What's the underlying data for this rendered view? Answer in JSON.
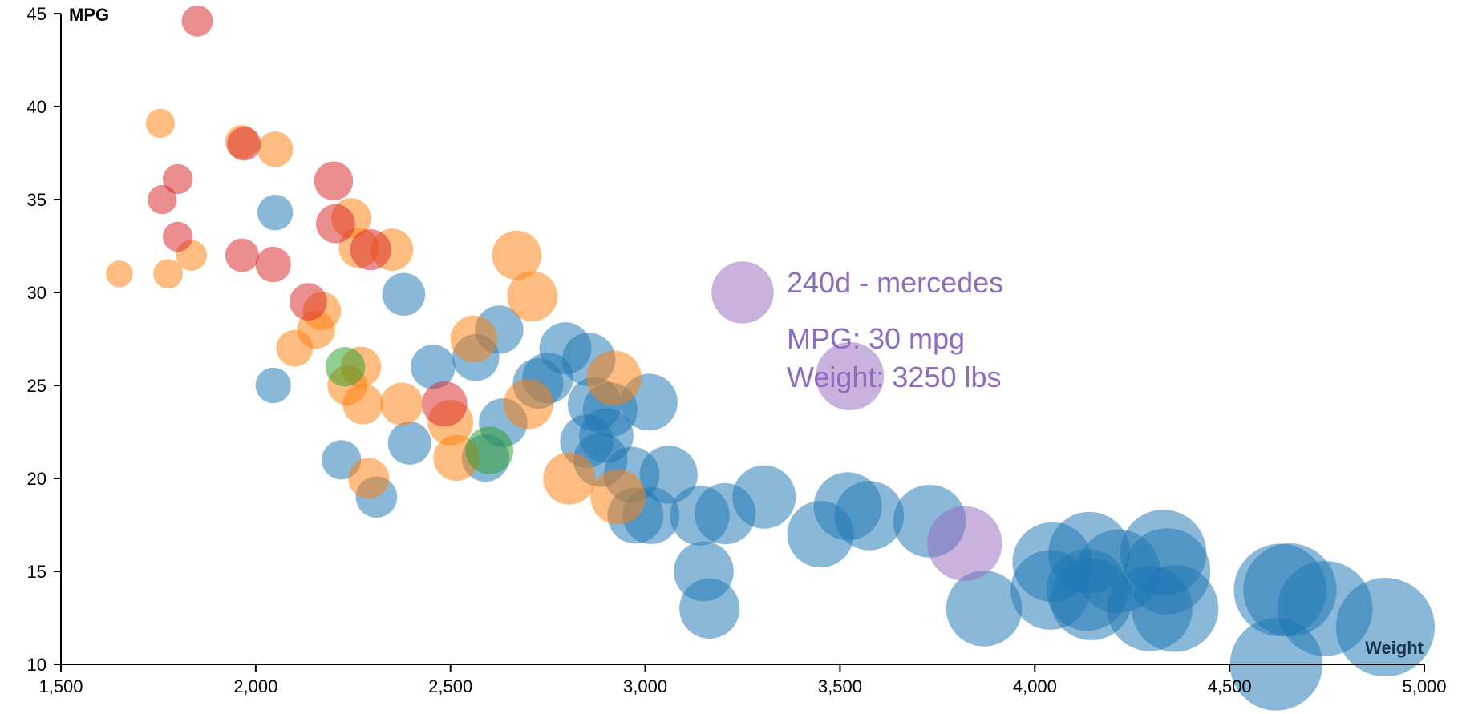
{
  "chart_data": {
    "type": "scatter",
    "xlabel": "Weight",
    "ylabel": "MPG",
    "xlim": [
      1500,
      5000
    ],
    "ylim": [
      10,
      45
    ],
    "x_ticks": [
      "1,500",
      "2,000",
      "2,500",
      "3,000",
      "3,500",
      "4,000",
      "4,500",
      "5,000"
    ],
    "y_ticks": [
      "10",
      "15",
      "20",
      "25",
      "30",
      "35",
      "40",
      "45"
    ],
    "grid": false,
    "colors": {
      "blue": "#1f77b4",
      "orange": "#ff7f0e",
      "red": "#d62728",
      "green": "#2ca02c",
      "purple": "#9467bd",
      "axis": "#000000",
      "weight_label": "#17344f"
    },
    "series": [
      {
        "color": "blue",
        "points": [
          [
            2050,
            34.3
          ],
          [
            2045,
            25
          ],
          [
            2380,
            29.9
          ],
          [
            2220,
            21
          ],
          [
            2310,
            19
          ],
          [
            2395,
            21.9
          ],
          [
            2455,
            26
          ],
          [
            2565,
            26.5
          ],
          [
            2590,
            21.1
          ],
          [
            2625,
            28
          ],
          [
            2635,
            23
          ],
          [
            2725,
            25.1
          ],
          [
            2750,
            25.4
          ],
          [
            2795,
            27
          ],
          [
            2855,
            26.4
          ],
          [
            2850,
            22
          ],
          [
            2870,
            24
          ],
          [
            2885,
            21
          ],
          [
            2900,
            22.3
          ],
          [
            2910,
            23.7
          ],
          [
            2965,
            20.2
          ],
          [
            2975,
            18
          ],
          [
            3010,
            24.1
          ],
          [
            3015,
            18
          ],
          [
            3060,
            20.2
          ],
          [
            3140,
            18
          ],
          [
            3150,
            15
          ],
          [
            3165,
            13
          ],
          [
            3205,
            18.1
          ],
          [
            3305,
            19
          ],
          [
            3450,
            17
          ],
          [
            3520,
            18.5
          ],
          [
            3575,
            18
          ],
          [
            3730,
            17.7
          ],
          [
            3870,
            13
          ],
          [
            4045,
            15.5
          ],
          [
            4040,
            14
          ],
          [
            4140,
            16
          ],
          [
            4135,
            14
          ],
          [
            4145,
            13.5
          ],
          [
            4215,
            15
          ],
          [
            4295,
            13
          ],
          [
            4330,
            16
          ],
          [
            4340,
            15
          ],
          [
            4360,
            13
          ],
          [
            4630,
            14
          ],
          [
            4655,
            14
          ],
          [
            4745,
            13
          ],
          [
            4620,
            10
          ],
          [
            4900,
            12
          ]
        ]
      },
      {
        "color": "orange",
        "points": [
          [
            1755,
            39.1
          ],
          [
            1650,
            31
          ],
          [
            1775,
            31
          ],
          [
            1835,
            32
          ],
          [
            2050,
            37.7
          ],
          [
            1965,
            38.1
          ],
          [
            2100,
            27
          ],
          [
            2155,
            28
          ],
          [
            2170,
            29
          ],
          [
            2235,
            25
          ],
          [
            2245,
            34
          ],
          [
            2265,
            32.4
          ],
          [
            2270,
            26
          ],
          [
            2275,
            24
          ],
          [
            2290,
            20
          ],
          [
            2350,
            32.3
          ],
          [
            2375,
            24
          ],
          [
            2500,
            23
          ],
          [
            2515,
            21.1
          ],
          [
            2560,
            27.5
          ],
          [
            2670,
            32
          ],
          [
            2710,
            29.8
          ],
          [
            2700,
            24
          ],
          [
            2805,
            20
          ],
          [
            2920,
            25.4
          ],
          [
            2930,
            19
          ]
        ]
      },
      {
        "color": "red",
        "points": [
          [
            1850,
            44.6
          ],
          [
            1760,
            35
          ],
          [
            1800,
            36.1
          ],
          [
            1800,
            33
          ],
          [
            1965,
            32
          ],
          [
            1970,
            38
          ],
          [
            2045,
            31.5
          ],
          [
            2135,
            29.5
          ],
          [
            2200,
            36
          ],
          [
            2205,
            33.7
          ],
          [
            2295,
            32.3
          ],
          [
            2485,
            24
          ]
        ]
      },
      {
        "color": "green",
        "points": [
          [
            2230,
            26
          ],
          [
            2600,
            21.5
          ]
        ]
      },
      {
        "color": "purple",
        "points": [
          [
            3820,
            16.5
          ],
          [
            3525,
            25.5
          ],
          [
            3250,
            30
          ]
        ]
      }
    ]
  },
  "tooltip": {
    "title": "240d - mercedes",
    "mpg_line": "MPG: 30 mpg",
    "weight_line": "Weight: 3250 lbs"
  }
}
